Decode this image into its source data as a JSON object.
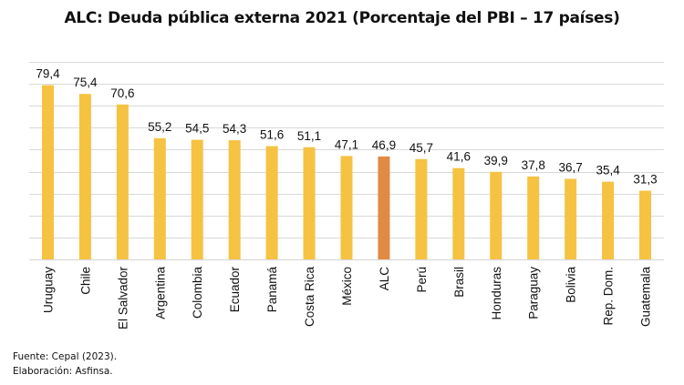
{
  "chart_data": {
    "type": "bar",
    "title": "ALC: Deuda pública externa 2021 (Porcentaje del PBI – 17 países)",
    "xlabel": "",
    "ylabel": "",
    "ylim": [
      0,
      90
    ],
    "grid": true,
    "gridline_step": 10,
    "categories": [
      "Uruguay",
      "Chile",
      "El Salvador",
      "Argentina",
      "Colombia",
      "Ecuador",
      "Panamá",
      "Costa Rica",
      "México",
      "ALC",
      "Perú",
      "Brasil",
      "Honduras",
      "Paraguay",
      "Bolivia",
      "Rep. Dom.",
      "Guatemala"
    ],
    "values": [
      79.4,
      75.4,
      70.6,
      55.2,
      54.5,
      54.3,
      51.6,
      51.1,
      47.1,
      46.9,
      45.7,
      41.6,
      39.9,
      37.8,
      36.7,
      35.4,
      31.3
    ],
    "data_labels": [
      "79,4",
      "75,4",
      "70,6",
      "55,2",
      "54,5",
      "54,3",
      "51,6",
      "51,1",
      "47,1",
      "46,9",
      "45,7",
      "41,6",
      "39,9",
      "37,8",
      "36,7",
      "35,4",
      "31,3"
    ],
    "highlight_category": "ALC",
    "colors": {
      "bar": "#F5C242",
      "highlight": "#E08A43",
      "grid": "#D9D9D9"
    }
  },
  "footer": {
    "source": "Fuente: Cepal (2023).",
    "elaboration": "Elaboración: Asfinsa."
  }
}
